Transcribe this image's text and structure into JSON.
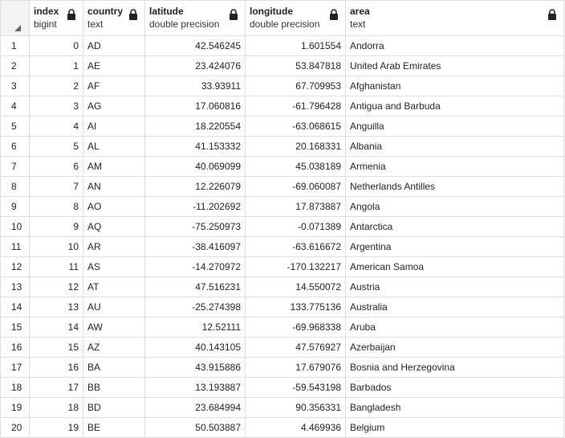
{
  "columns": [
    {
      "name": "index",
      "type": "bigint"
    },
    {
      "name": "country",
      "type": "text"
    },
    {
      "name": "latitude",
      "type": "double precision"
    },
    {
      "name": "longitude",
      "type": "double precision"
    },
    {
      "name": "area",
      "type": "text"
    }
  ],
  "rows": [
    {
      "n": "1",
      "index": "0",
      "country": "AD",
      "latitude": "42.546245",
      "longitude": "1.601554",
      "area": "Andorra"
    },
    {
      "n": "2",
      "index": "1",
      "country": "AE",
      "latitude": "23.424076",
      "longitude": "53.847818",
      "area": "United Arab Emirates"
    },
    {
      "n": "3",
      "index": "2",
      "country": "AF",
      "latitude": "33.93911",
      "longitude": "67.709953",
      "area": "Afghanistan"
    },
    {
      "n": "4",
      "index": "3",
      "country": "AG",
      "latitude": "17.060816",
      "longitude": "-61.796428",
      "area": "Antigua and Barbuda"
    },
    {
      "n": "5",
      "index": "4",
      "country": "AI",
      "latitude": "18.220554",
      "longitude": "-63.068615",
      "area": "Anguilla"
    },
    {
      "n": "6",
      "index": "5",
      "country": "AL",
      "latitude": "41.153332",
      "longitude": "20.168331",
      "area": "Albania"
    },
    {
      "n": "7",
      "index": "6",
      "country": "AM",
      "latitude": "40.069099",
      "longitude": "45.038189",
      "area": "Armenia"
    },
    {
      "n": "8",
      "index": "7",
      "country": "AN",
      "latitude": "12.226079",
      "longitude": "-69.060087",
      "area": "Netherlands Antilles"
    },
    {
      "n": "9",
      "index": "8",
      "country": "AO",
      "latitude": "-11.202692",
      "longitude": "17.873887",
      "area": "Angola"
    },
    {
      "n": "10",
      "index": "9",
      "country": "AQ",
      "latitude": "-75.250973",
      "longitude": "-0.071389",
      "area": "Antarctica"
    },
    {
      "n": "11",
      "index": "10",
      "country": "AR",
      "latitude": "-38.416097",
      "longitude": "-63.616672",
      "area": "Argentina"
    },
    {
      "n": "12",
      "index": "11",
      "country": "AS",
      "latitude": "-14.270972",
      "longitude": "-170.132217",
      "area": "American Samoa"
    },
    {
      "n": "13",
      "index": "12",
      "country": "AT",
      "latitude": "47.516231",
      "longitude": "14.550072",
      "area": "Austria"
    },
    {
      "n": "14",
      "index": "13",
      "country": "AU",
      "latitude": "-25.274398",
      "longitude": "133.775136",
      "area": "Australia"
    },
    {
      "n": "15",
      "index": "14",
      "country": "AW",
      "latitude": "12.52111",
      "longitude": "-69.968338",
      "area": "Aruba"
    },
    {
      "n": "16",
      "index": "15",
      "country": "AZ",
      "latitude": "40.143105",
      "longitude": "47.576927",
      "area": "Azerbaijan"
    },
    {
      "n": "17",
      "index": "16",
      "country": "BA",
      "latitude": "43.915886",
      "longitude": "17.679076",
      "area": "Bosnia and Herzegovina"
    },
    {
      "n": "18",
      "index": "17",
      "country": "BB",
      "latitude": "13.193887",
      "longitude": "-59.543198",
      "area": "Barbados"
    },
    {
      "n": "19",
      "index": "18",
      "country": "BD",
      "latitude": "23.684994",
      "longitude": "90.356331",
      "area": "Bangladesh"
    },
    {
      "n": "20",
      "index": "19",
      "country": "BE",
      "latitude": "50.503887",
      "longitude": "4.469936",
      "area": "Belgium"
    }
  ],
  "icons": {
    "lock": "lock-icon",
    "corner": "select-all-corner-icon"
  },
  "colors": {
    "border": "#dddddd",
    "corner_bg": "#f3f3f3",
    "text": "#222222"
  }
}
